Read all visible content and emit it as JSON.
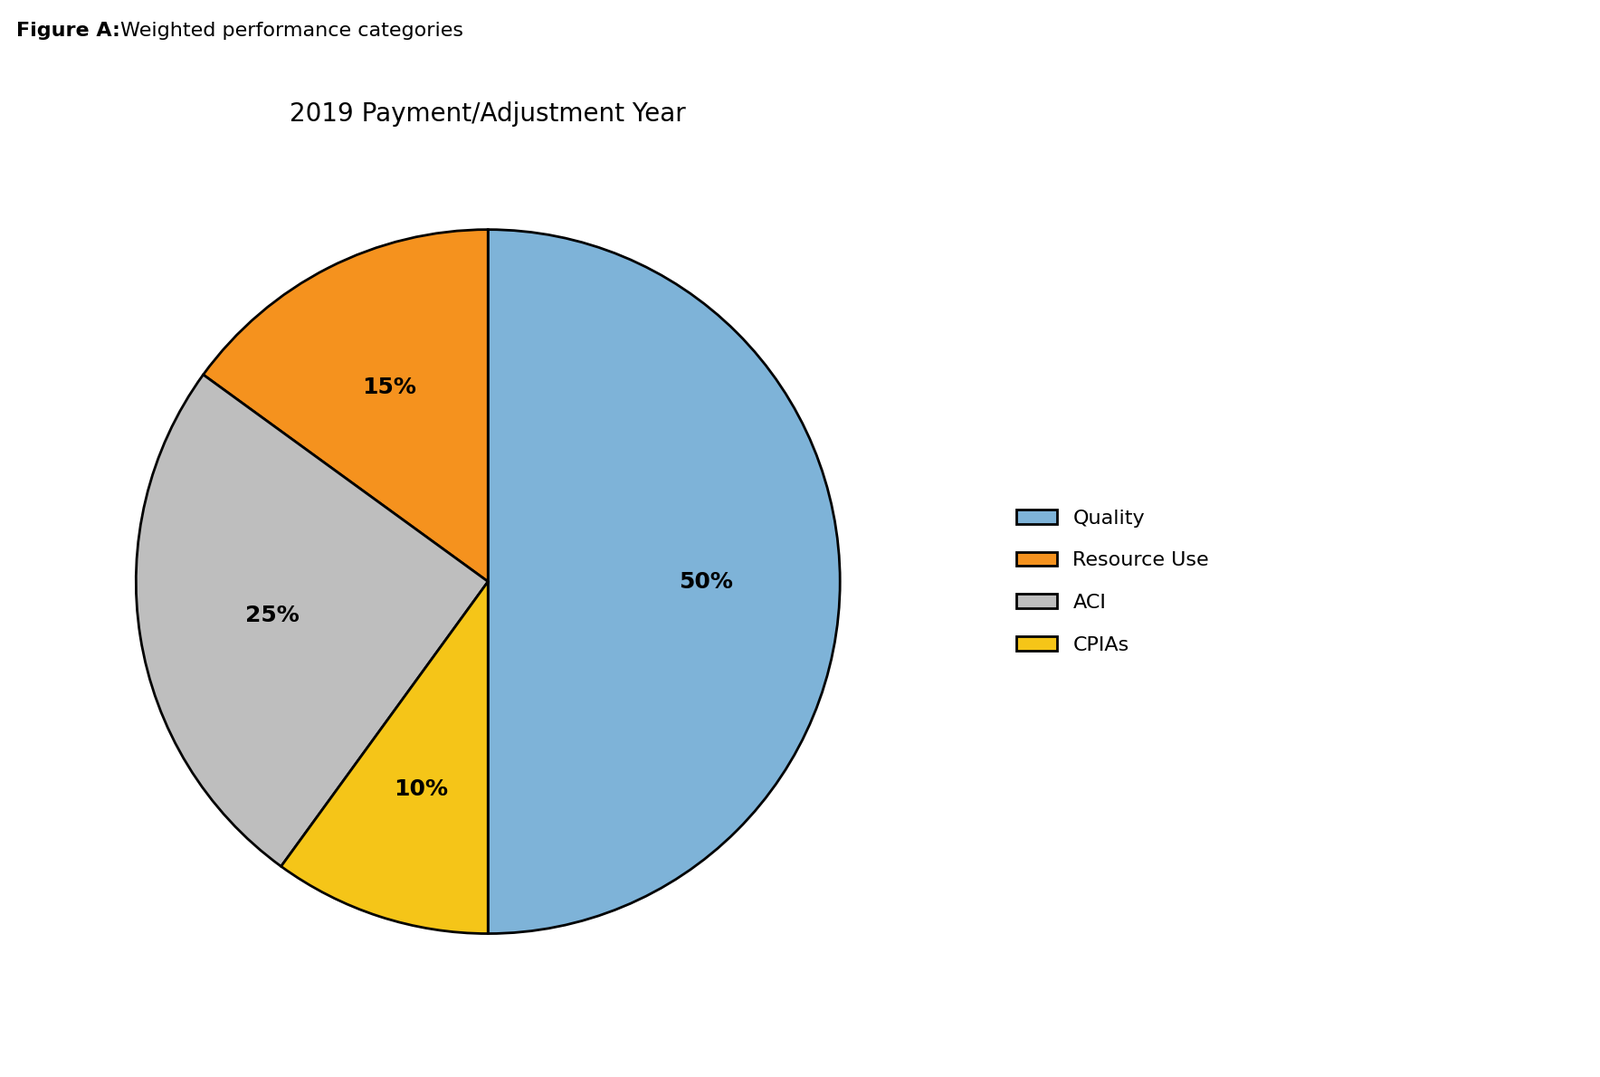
{
  "chart_data": {
    "type": "pie",
    "title": "2019 Payment/Adjustment Year",
    "annotations": [
      "Figure A:",
      "Weighted performance categories"
    ],
    "categories": [
      "Quality",
      "Resource Use",
      "ACI",
      "CPIAs"
    ],
    "values": [
      50,
      15,
      25,
      10
    ],
    "value_labels": [
      "50%",
      "15%",
      "25%",
      "10%"
    ],
    "colors": [
      "#7EB3D8",
      "#F5921E",
      "#BEBEBE",
      "#F5C518"
    ],
    "data_labels": true,
    "legend": "center left"
  }
}
